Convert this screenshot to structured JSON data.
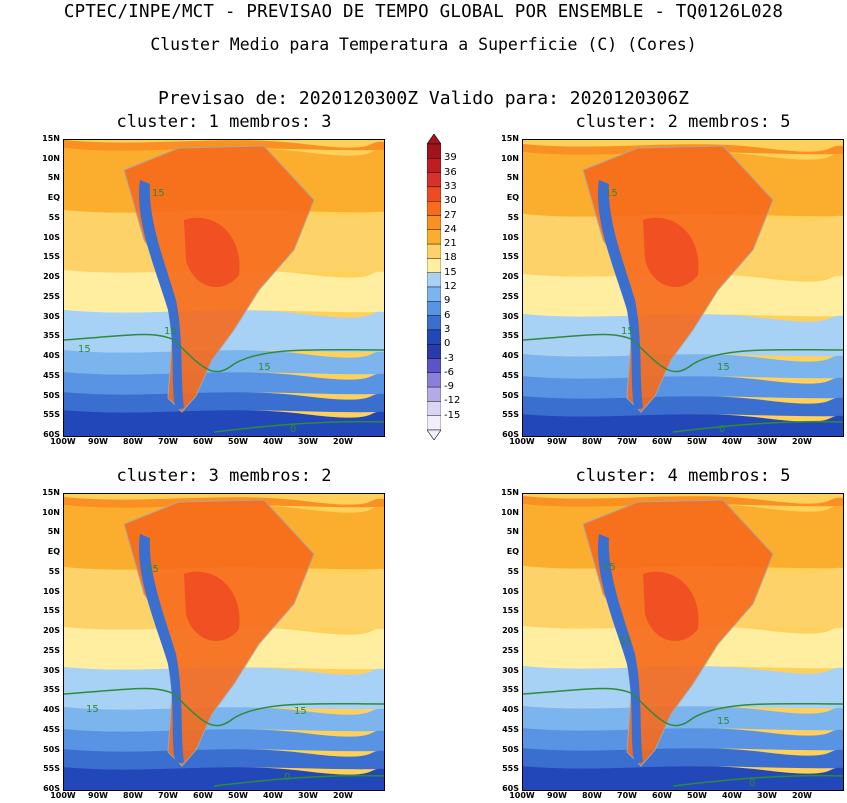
{
  "header": {
    "line1": "CPTEC/INPE/MCT - PREVISAO DE TEMPO GLOBAL POR ENSEMBLE - TQ0126L028",
    "line2": "Cluster Medio para Temperatura a Superficie (C) (Cores)",
    "line3": "Previsao de: 2020120300Z   Valido para: 2020120306Z"
  },
  "panels": [
    {
      "title": "cluster: 1  membros: 3",
      "contour_labels": [
        "15",
        "15",
        "15",
        "15",
        "0"
      ]
    },
    {
      "title": "cluster: 2  membros: 5",
      "contour_labels": [
        "15",
        "15",
        "15",
        "0"
      ]
    },
    {
      "title": "cluster: 3  membros: 2",
      "contour_labels": [
        "15",
        "15",
        "15",
        "0"
      ]
    },
    {
      "title": "cluster: 4  membros: 5",
      "contour_labels": [
        "15",
        "15",
        "15",
        "0"
      ]
    }
  ],
  "axes": {
    "lat_ticks": [
      "15N",
      "10N",
      "5N",
      "EQ",
      "5S",
      "10S",
      "15S",
      "20S",
      "25S",
      "30S",
      "35S",
      "40S",
      "45S",
      "50S",
      "55S",
      "60S"
    ],
    "lon_ticks": [
      "100W",
      "90W",
      "80W",
      "70W",
      "60W",
      "50W",
      "40W",
      "30W",
      "20W"
    ]
  },
  "colorbar": {
    "labels": [
      "39",
      "36",
      "33",
      "30",
      "27",
      "24",
      "21",
      "18",
      "15",
      "12",
      "9",
      "6",
      "3",
      "0",
      "-3",
      "-6",
      "-9",
      "-12",
      "-15"
    ],
    "colors": [
      "#a0141e",
      "#be1e23",
      "#d9302b",
      "#ef4a22",
      "#f76b1c",
      "#fa8f22",
      "#fbae2e",
      "#fdd269",
      "#ffeda0",
      "#a7d1f5",
      "#7cb4ee",
      "#5894e3",
      "#3a6fd0",
      "#2247b8",
      "#2a3aa8",
      "#5a54c6",
      "#8a7fd9",
      "#b4aae6",
      "#dcd4f3",
      "#f2eefb"
    ],
    "max_color": "#a0141e",
    "min_color": "#f2eefb"
  },
  "colors": {
    "contour": "#2e8b3a",
    "borders": "#a8a8a8"
  }
}
